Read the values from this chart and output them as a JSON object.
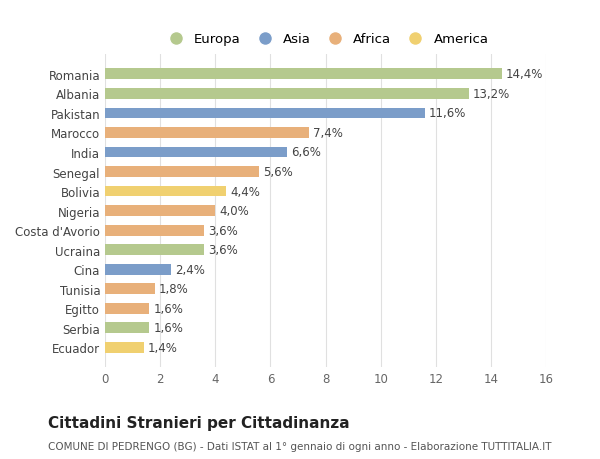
{
  "countries": [
    "Romania",
    "Albania",
    "Pakistan",
    "Marocco",
    "India",
    "Senegal",
    "Bolivia",
    "Nigeria",
    "Costa d'Avorio",
    "Ucraina",
    "Cina",
    "Tunisia",
    "Egitto",
    "Serbia",
    "Ecuador"
  ],
  "values": [
    14.4,
    13.2,
    11.6,
    7.4,
    6.6,
    5.6,
    4.4,
    4.0,
    3.6,
    3.6,
    2.4,
    1.8,
    1.6,
    1.6,
    1.4
  ],
  "labels": [
    "14,4%",
    "13,2%",
    "11,6%",
    "7,4%",
    "6,6%",
    "5,6%",
    "4,4%",
    "4,0%",
    "3,6%",
    "3,6%",
    "2,4%",
    "1,8%",
    "1,6%",
    "1,6%",
    "1,4%"
  ],
  "continents": [
    "Europa",
    "Europa",
    "Asia",
    "Africa",
    "Asia",
    "Africa",
    "America",
    "Africa",
    "Africa",
    "Europa",
    "Asia",
    "Africa",
    "Africa",
    "Europa",
    "America"
  ],
  "continent_colors": {
    "Europa": "#b5c98e",
    "Asia": "#7b9dc9",
    "Africa": "#e8b07a",
    "America": "#f0d070"
  },
  "legend_order": [
    "Europa",
    "Asia",
    "Africa",
    "America"
  ],
  "title": "Cittadini Stranieri per Cittadinanza",
  "subtitle": "COMUNE DI PEDRENGO (BG) - Dati ISTAT al 1° gennaio di ogni anno - Elaborazione TUTTITALIA.IT",
  "xlim": [
    0,
    16
  ],
  "xticks": [
    0,
    2,
    4,
    6,
    8,
    10,
    12,
    14,
    16
  ],
  "background_color": "#ffffff",
  "grid_color": "#e0e0e0",
  "bar_height": 0.55,
  "label_fontsize": 8.5,
  "tick_fontsize": 8.5,
  "title_fontsize": 11,
  "subtitle_fontsize": 7.5
}
